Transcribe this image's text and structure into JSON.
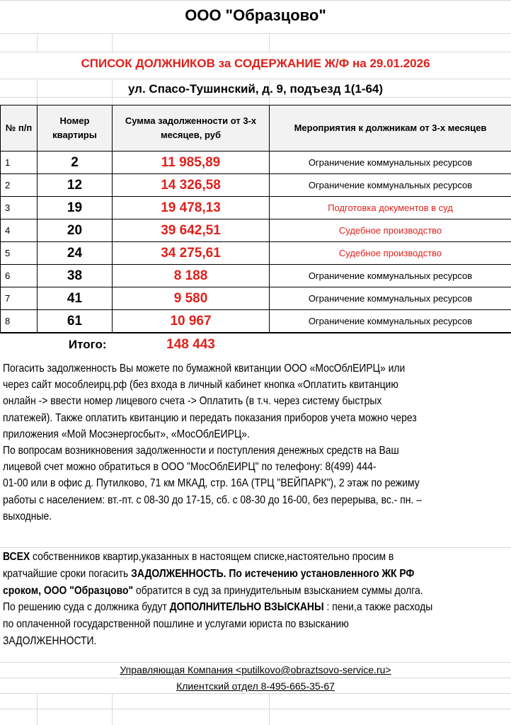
{
  "company": "ООО \"Образцово\"",
  "list_title": "СПИСОК ДОЛЖНИКОВ за СОДЕРЖАНИЕ Ж/Ф  на 29.01.2026",
  "address": "ул. Спасо-Тушинский, д. 9, подъезд 1(1-64)",
  "table": {
    "headers": [
      "№ п/п",
      "Номер квартиры",
      "Сумма  задолженности от  3-х месяцев, руб",
      "Мероприятия к должникам от 3-х месяцев"
    ],
    "rows": [
      {
        "n": "1",
        "apt": "2",
        "sum": "11 985,89",
        "action": "Ограничение  коммунальных  ресурсов",
        "action_red": false
      },
      {
        "n": "2",
        "apt": "12",
        "sum": "14 326,58",
        "action": "Ограничение  коммунальных  ресурсов",
        "action_red": false
      },
      {
        "n": "3",
        "apt": "19",
        "sum": "19 478,13",
        "action": "Подготовка  документов   в суд",
        "action_red": true
      },
      {
        "n": "4",
        "apt": "20",
        "sum": "39 642,51",
        "action": "Судебное производство",
        "action_red": true
      },
      {
        "n": "5",
        "apt": "24",
        "sum": "34 275,61",
        "action": "Судебное производство",
        "action_red": true
      },
      {
        "n": "6",
        "apt": "38",
        "sum": "8 188",
        "action": "Ограничение  коммунальных  ресурсов",
        "action_red": false
      },
      {
        "n": "7",
        "apt": "41",
        "sum": "9 580",
        "action": "Ограничение  коммунальных  ресурсов",
        "action_red": false
      },
      {
        "n": "8",
        "apt": "61",
        "sum": "10 967",
        "action": "Ограничение  коммунальных  ресурсов",
        "action_red": false
      }
    ],
    "total_label": "Итого:",
    "total_value": "148 443"
  },
  "payment_info_lines": [
    " Погасить задолженность Вы можете по бумажной квитанции ООО «МосОблЕИРЦ» или",
    "через сайт мособлеирц.рф (без входа в личный кабинет кнопка «Оплатить квитанцию",
    "онлайн -> ввести номер лицевого счета -> Оплатить (в т.ч. через систему быстрых",
    "платежей). Также оплатить квитанцию и передать показания приборов учета можно через",
    "приложения «Мой Мосэнергосбыт», «МосОблЕИРЦ».",
    "По вопросам  возникновения задолженности и поступления денежных средств на Ваш",
    "лицевой счет можно обратиться в  ООО \"МосОблЕИРЦ\" по телефону:               8(499) 444-",
    "01-00 или в офис д. Путилково, 71 км МКАД,  стр. 16А (ТРЦ \"ВЕЙПАРК\"), 2 этаж по режиму",
    "работы с населением: вт.-пт. с 08-30 до 17-15, сб. с 08-30 до 16-00, без перерыва, вс.- пн. –",
    "выходные."
  ],
  "warning_lines": [
    [
      {
        "t": "ВСЕХ",
        "b": true
      },
      {
        "t": " собственников квартир,указанных в настоящем списке,настоятельно просим в",
        "b": false
      }
    ],
    [
      {
        "t": "кратчайшие сроки погасить ",
        "b": false
      },
      {
        "t": "ЗАДОЛЖЕННОСТЬ.  По истечению установленного ЖК РФ",
        "b": true
      }
    ],
    [
      {
        "t": "сроком, ООО \"Образцово\"",
        "b": true
      },
      {
        "t": " обратится в суд за принудительным взысканием суммы долга.",
        "b": false
      }
    ],
    [
      {
        "t": "По решению суда с должника будут ",
        "b": false
      },
      {
        "t": "ДОПОЛНИТЕЛЬНО ВЗЫСКАНЫ",
        "b": true
      },
      {
        "t": " : пени,а также расходы",
        "b": false
      }
    ],
    [
      {
        "t": "по оплаченной государственной пошлине и услугами юриста по взысканию",
        "b": false
      }
    ],
    [
      {
        "t": "ЗАДОЛЖЕННОСТИ.",
        "b": false
      }
    ]
  ],
  "footer": {
    "company_email": "Управляющая Компания <putilkovo@obraztsovo-service.ru>",
    "client_dept": "Клиентский  отдел  8-495-665-35-67"
  },
  "colors": {
    "accent_red": "#e0201b",
    "header_fill": "#f2f2f2",
    "gridline": "#d9d9d9"
  }
}
